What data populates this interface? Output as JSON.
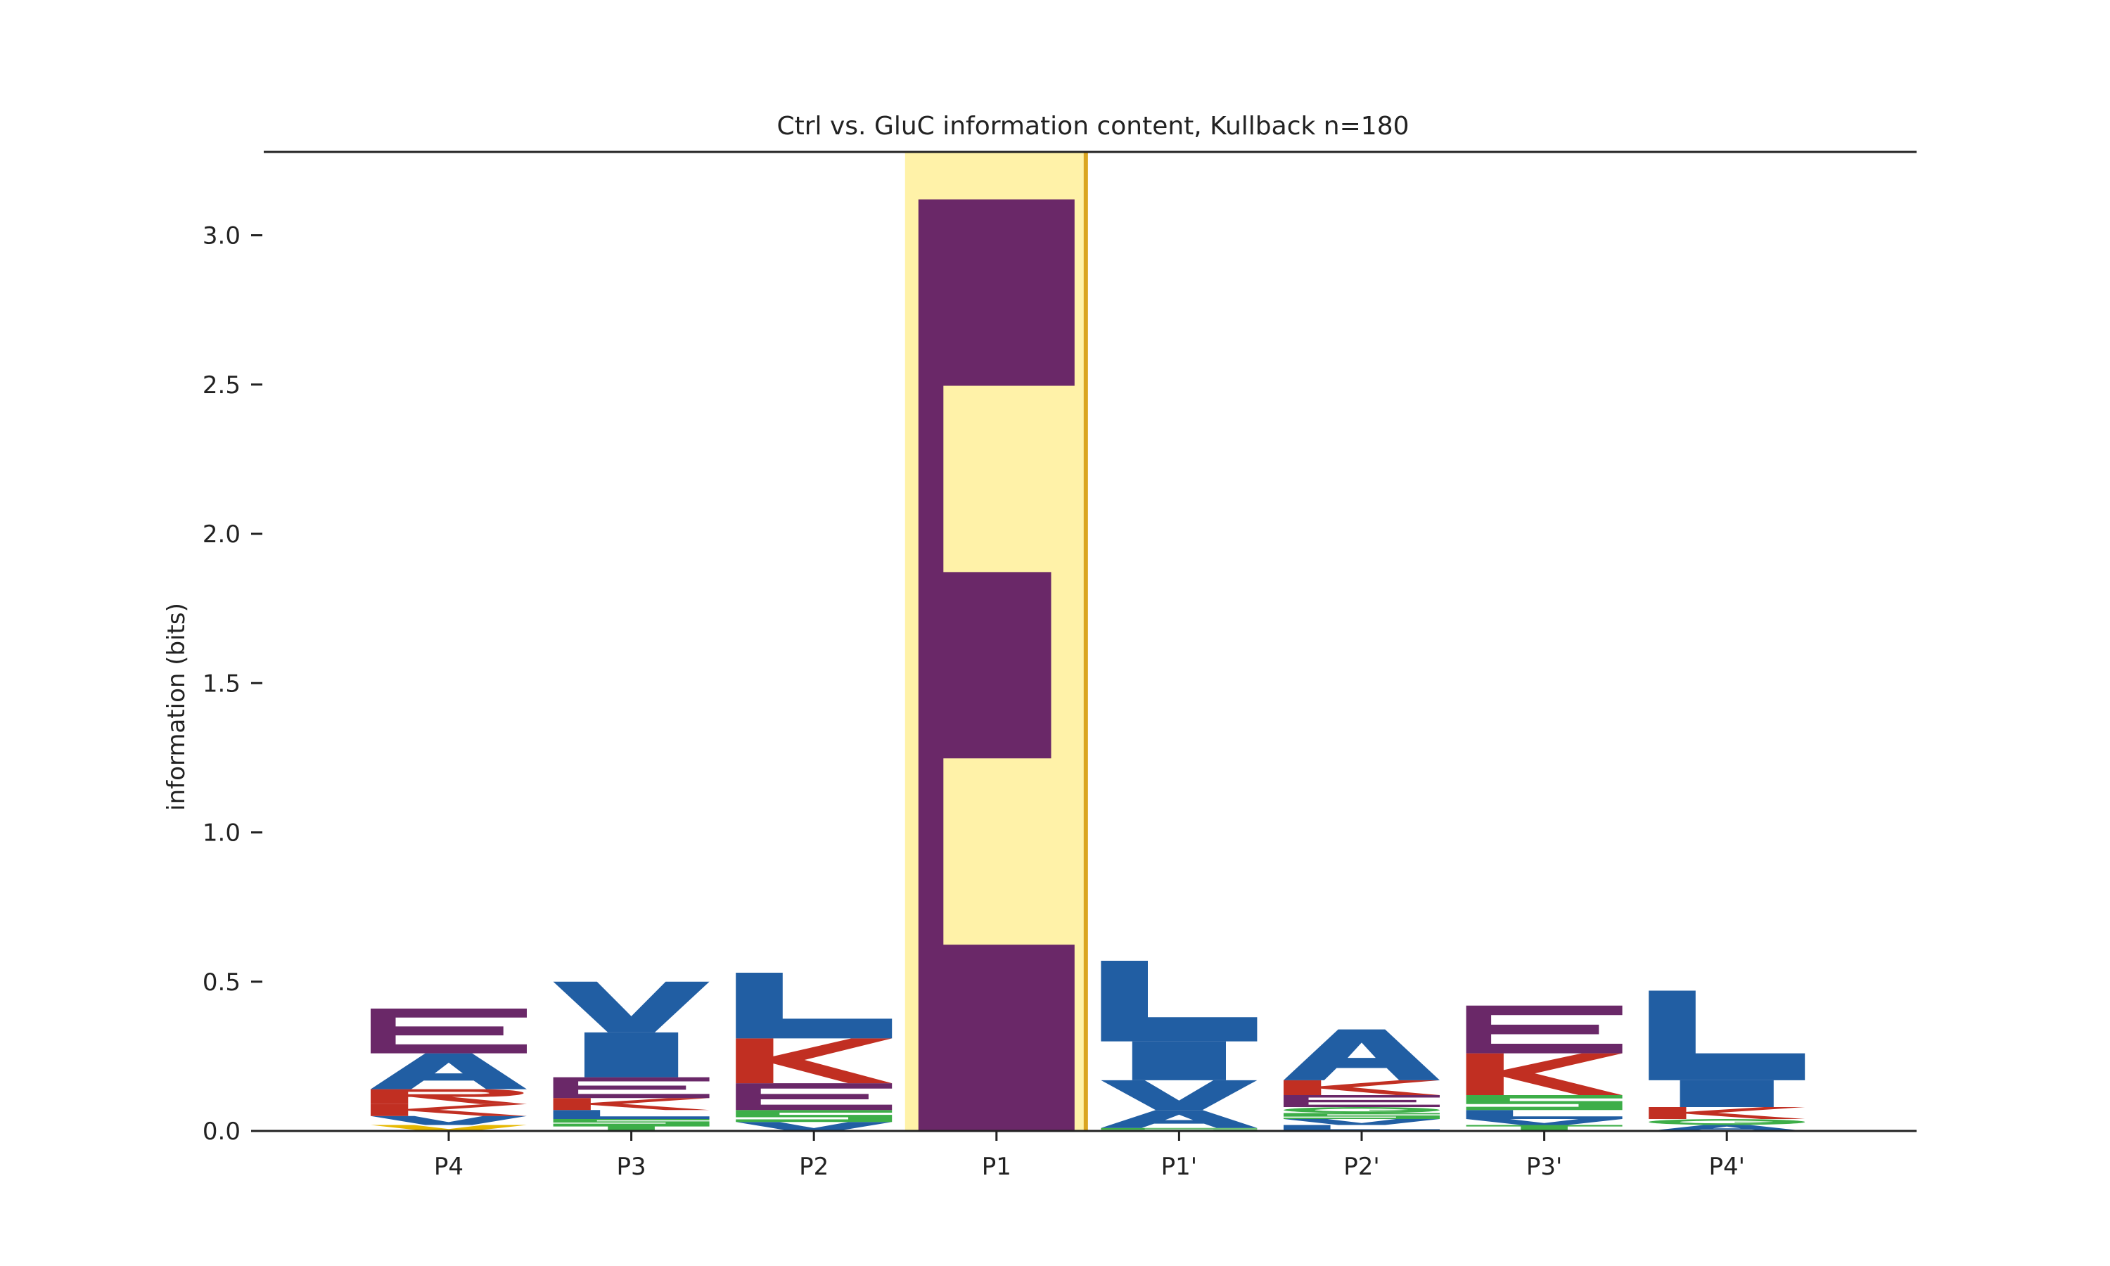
{
  "chart_data": {
    "type": "sequence-logo",
    "title": "Ctrl vs. GluC information content, Kullback n=180",
    "xlabel": "",
    "ylabel": "information (bits)",
    "ylim": [
      0,
      3.28
    ],
    "yticks": [
      0.0,
      0.5,
      1.0,
      1.5,
      2.0,
      2.5,
      3.0
    ],
    "ytick_labels": [
      "0.0",
      "0.5",
      "1.0",
      "1.5",
      "2.0",
      "2.5",
      "3.0"
    ],
    "grid": false,
    "highlight": {
      "position": "P1",
      "color": "#FFF2A8",
      "edge_color": "#DAA520"
    },
    "colors": {
      "acidic": "#6A2868",
      "basic": "#C12F22",
      "hydrophobic": "#215EA3",
      "polar": "#3DAE48",
      "other": "#E6B800"
    },
    "positions": [
      {
        "label": "P4",
        "letters": [
          {
            "letter": "V",
            "height": 0.02,
            "color": "#E6B800"
          },
          {
            "letter": "V",
            "height": 0.03,
            "color": "#215EA3"
          },
          {
            "letter": "K",
            "height": 0.04,
            "color": "#C12F22"
          },
          {
            "letter": "R",
            "height": 0.05,
            "color": "#C12F22"
          },
          {
            "letter": "A",
            "height": 0.12,
            "color": "#215EA3"
          },
          {
            "letter": "E",
            "height": 0.15,
            "color": "#6A2868"
          }
        ]
      },
      {
        "label": "P3",
        "letters": [
          {
            "letter": "T",
            "height": 0.02,
            "color": "#3DAE48"
          },
          {
            "letter": "S",
            "height": 0.02,
            "color": "#3DAE48"
          },
          {
            "letter": "L",
            "height": 0.03,
            "color": "#215EA3"
          },
          {
            "letter": "K",
            "height": 0.04,
            "color": "#C12F22"
          },
          {
            "letter": "E",
            "height": 0.07,
            "color": "#6A2868"
          },
          {
            "letter": "I",
            "height": 0.15,
            "color": "#215EA3"
          },
          {
            "letter": "V",
            "height": 0.17,
            "color": "#215EA3"
          }
        ]
      },
      {
        "label": "P2",
        "letters": [
          {
            "letter": "V",
            "height": 0.03,
            "color": "#215EA3"
          },
          {
            "letter": "S",
            "height": 0.04,
            "color": "#3DAE48"
          },
          {
            "letter": "E",
            "height": 0.09,
            "color": "#6A2868"
          },
          {
            "letter": "K",
            "height": 0.15,
            "color": "#C12F22"
          },
          {
            "letter": "L",
            "height": 0.22,
            "color": "#215EA3"
          }
        ]
      },
      {
        "label": "P1",
        "letters": [
          {
            "letter": "E",
            "height": 3.12,
            "color": "#6A2868"
          }
        ]
      },
      {
        "label": "P1'",
        "letters": [
          {
            "letter": "S",
            "height": 0.01,
            "color": "#3DAE48"
          },
          {
            "letter": "A",
            "height": 0.06,
            "color": "#215EA3"
          },
          {
            "letter": "V",
            "height": 0.1,
            "color": "#215EA3"
          },
          {
            "letter": "I",
            "height": 0.13,
            "color": "#215EA3"
          },
          {
            "letter": "L",
            "height": 0.27,
            "color": "#215EA3"
          }
        ]
      },
      {
        "label": "P2'",
        "letters": [
          {
            "letter": "L",
            "height": 0.02,
            "color": "#215EA3"
          },
          {
            "letter": "V",
            "height": 0.02,
            "color": "#215EA3"
          },
          {
            "letter": "S",
            "height": 0.02,
            "color": "#3DAE48"
          },
          {
            "letter": "G",
            "height": 0.02,
            "color": "#3DAE48"
          },
          {
            "letter": "E",
            "height": 0.04,
            "color": "#6A2868"
          },
          {
            "letter": "K",
            "height": 0.05,
            "color": "#C12F22"
          },
          {
            "letter": "A",
            "height": 0.17,
            "color": "#215EA3"
          }
        ]
      },
      {
        "label": "P3'",
        "letters": [
          {
            "letter": "T",
            "height": 0.02,
            "color": "#3DAE48"
          },
          {
            "letter": "V",
            "height": 0.02,
            "color": "#215EA3"
          },
          {
            "letter": "L",
            "height": 0.03,
            "color": "#215EA3"
          },
          {
            "letter": "S",
            "height": 0.05,
            "color": "#3DAE48"
          },
          {
            "letter": "K",
            "height": 0.14,
            "color": "#C12F22"
          },
          {
            "letter": "E",
            "height": 0.16,
            "color": "#6A2868"
          }
        ]
      },
      {
        "label": "P4'",
        "letters": [
          {
            "letter": "A",
            "height": 0.02,
            "color": "#215EA3"
          },
          {
            "letter": "G",
            "height": 0.02,
            "color": "#3DAE48"
          },
          {
            "letter": "K",
            "height": 0.04,
            "color": "#C12F22"
          },
          {
            "letter": "I",
            "height": 0.09,
            "color": "#215EA3"
          },
          {
            "letter": "L",
            "height": 0.3,
            "color": "#215EA3"
          }
        ]
      }
    ]
  }
}
